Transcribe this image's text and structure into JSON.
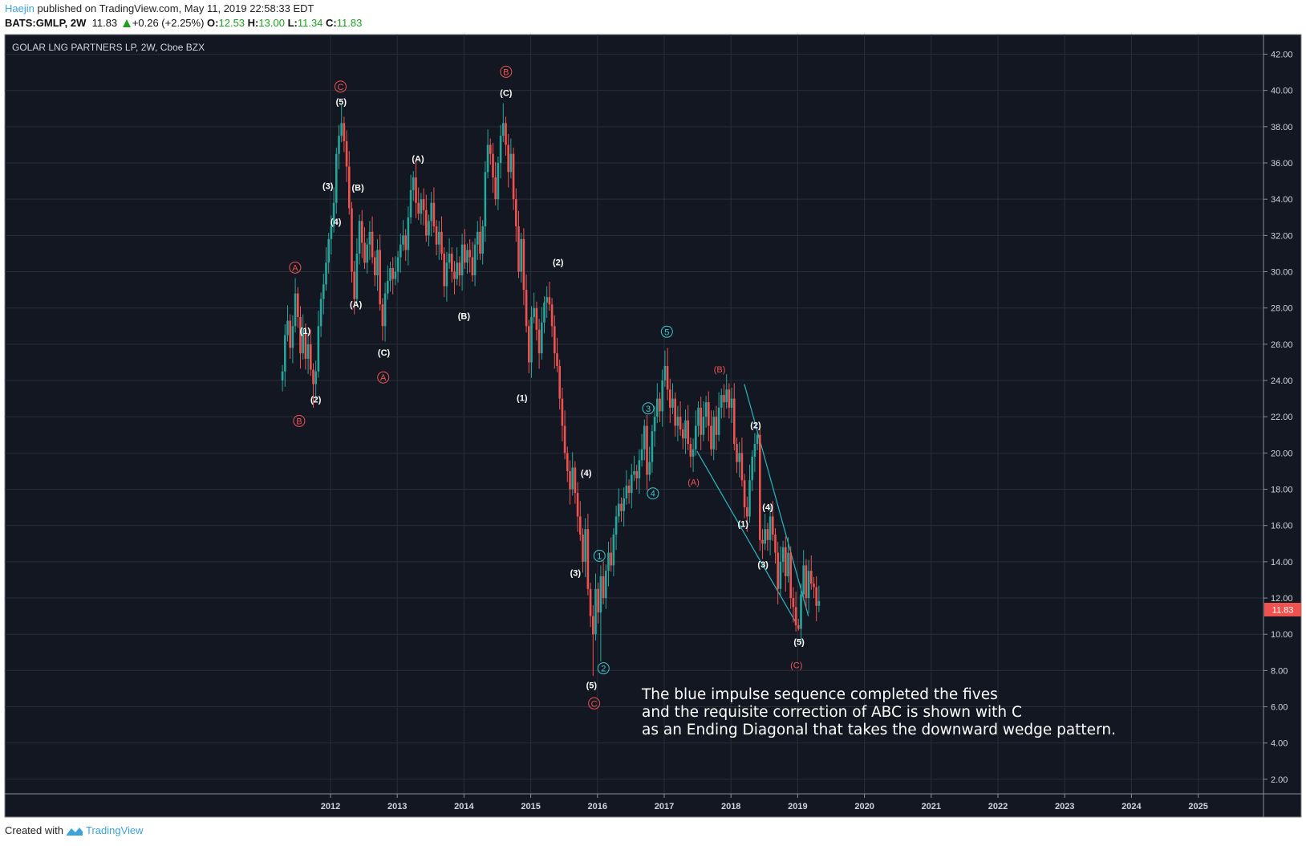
{
  "header": {
    "author": "Haejin",
    "published": "published on TradingView.com, May 11, 2019 22:58:33 EDT",
    "symbol": "BATS:GMLP, 2W",
    "last": "11.83",
    "change": "+0.26 (+2.25%)",
    "o_label": "O:",
    "o": "12.53",
    "h_label": "H:",
    "h": "13.00",
    "l_label": "L:",
    "l": "11.34",
    "c_label": "C:",
    "c": "11.83"
  },
  "footer": {
    "created_with": "Created with",
    "brand": "TradingView"
  },
  "colors": {
    "background": "#131722",
    "grid": "#2a2e39",
    "up": "#26a69a",
    "down": "#ef5350",
    "wave_white": "#ffffff",
    "wave_red": "#ef5350",
    "wave_teal": "#3cc8d0",
    "trendline": "#26b8c0",
    "header_green": "#1aa21a",
    "author_blue": "#3ba4dc"
  },
  "annotation": {
    "lines": [
      "The blue impulse sequence completed the fives",
      "and the requisite correction of ABC is shown with C",
      "as an Ending Diagonal that takes the downward wedge pattern."
    ]
  },
  "chart_data": {
    "type": "candlestick",
    "title": "GOLAR LNG PARTNERS LP, 2W, Cboe BZX",
    "interval": "2W",
    "last_price_label": "11.83",
    "ylim": [
      0.5,
      43.5
    ],
    "xlim": [
      2007.3,
      2026.0
    ],
    "y_ticks": [
      "2.00",
      "4.00",
      "6.00",
      "8.00",
      "10.00",
      "12.00",
      "14.00",
      "16.00",
      "18.00",
      "20.00",
      "22.00",
      "24.00",
      "26.00",
      "28.00",
      "30.00",
      "32.00",
      "34.00",
      "36.00",
      "38.00",
      "40.00",
      "42.00"
    ],
    "x_ticks": [
      "2012",
      "2013",
      "2014",
      "2015",
      "2016",
      "2017",
      "2018",
      "2019",
      "2020",
      "2021",
      "2022",
      "2023",
      "2024",
      "2025"
    ],
    "grid": true,
    "first_candle_year": 2011.28,
    "first_open": 24.0,
    "closes": [
      24.5,
      26.5,
      27.3,
      25.8,
      27.0,
      28.8,
      27.5,
      25.5,
      26.8,
      25.2,
      26.0,
      24.6,
      23.8,
      24.5,
      27.0,
      28.5,
      29.3,
      30.5,
      31.8,
      32.5,
      33.8,
      36.5,
      37.5,
      38.2,
      37.2,
      35.8,
      33.5,
      30.0,
      28.5,
      31.0,
      32.8,
      31.6,
      30.5,
      31.5,
      32.2,
      30.8,
      29.8,
      31.2,
      28.2,
      27.0,
      28.8,
      29.5,
      30.2,
      29.6,
      30.0,
      30.8,
      31.5,
      32.0,
      31.2,
      33.0,
      34.5,
      35.2,
      33.8,
      33.2,
      34.0,
      33.4,
      32.0,
      32.8,
      33.8,
      32.5,
      31.5,
      32.2,
      31.0,
      29.2,
      30.5,
      31.0,
      30.0,
      29.6,
      30.5,
      29.8,
      31.5,
      30.5,
      31.2,
      30.8,
      29.8,
      31.5,
      32.2,
      31.0,
      32.5,
      35.5,
      37.0,
      36.5,
      35.2,
      34.0,
      36.0,
      37.5,
      38.2,
      37.0,
      35.5,
      36.5,
      34.0,
      32.5,
      30.0,
      31.8,
      29.0,
      27.0,
      25.0,
      27.5,
      28.0,
      26.8,
      25.5,
      27.2,
      28.3,
      28.6,
      28.2,
      27.0,
      25.5,
      24.8,
      23.0,
      21.5,
      20.0,
      19.0,
      18.0,
      19.2,
      17.8,
      16.5,
      15.5,
      14.0,
      15.8,
      12.5,
      11.0,
      10.0,
      12.5,
      11.2,
      13.2,
      12.0,
      13.5,
      14.5,
      13.8,
      15.5,
      16.5,
      17.2,
      16.8,
      17.5,
      18.2,
      17.8,
      18.8,
      19.0,
      18.6,
      19.6,
      20.2,
      21.5,
      18.8,
      19.5,
      21.2,
      22.0,
      23.0,
      22.3,
      24.0,
      24.8,
      23.5,
      22.5,
      23.0,
      21.5,
      22.0,
      21.3,
      20.8,
      21.8,
      20.5,
      19.8,
      20.2,
      21.5,
      22.5,
      21.0,
      22.0,
      22.8,
      21.5,
      20.2,
      22.0,
      21.0,
      22.5,
      23.2,
      22.8,
      23.5,
      22.5,
      23.0,
      20.5,
      19.5,
      20.0,
      18.5,
      17.0,
      16.5,
      18.5,
      19.8,
      20.5,
      21.0,
      15.2,
      15.0,
      15.8,
      15.2,
      16.5,
      15.5,
      14.5,
      12.5,
      14.0,
      14.8,
      13.2,
      14.5,
      12.0,
      11.5,
      10.5,
      10.3,
      12.2,
      13.8,
      12.0,
      13.5,
      12.8,
      12.6,
      11.57,
      11.83
    ],
    "extreme_wicks": [
      {
        "index": 12,
        "low": 22.5
      },
      {
        "index": 23,
        "high": 39.2
      },
      {
        "index": 39,
        "low": 26.2
      },
      {
        "index": 52,
        "high": 36.2
      },
      {
        "index": 86,
        "high": 39.3
      },
      {
        "index": 121,
        "low": 7.7
      },
      {
        "index": 124,
        "low": 8.5
      },
      {
        "index": 150,
        "high": 25.8
      },
      {
        "index": 185,
        "high": 21.2
      },
      {
        "index": 201,
        "low": 10.2
      }
    ],
    "trendlines": [
      {
        "from": [
          2017.49,
          20.1
        ],
        "to": [
          2018.98,
          10.6
        ]
      },
      {
        "from": [
          2018.2,
          23.8
        ],
        "to": [
          2019.16,
          11.0
        ]
      }
    ],
    "wave_labels": [
      {
        "text": "A",
        "style": "red-circle",
        "year": 2011.47,
        "price": 30.23
      },
      {
        "text": "(1)",
        "style": "white",
        "year": 2011.62,
        "price": 26.74
      },
      {
        "text": "(2)",
        "style": "white",
        "year": 2011.78,
        "price": 22.97
      },
      {
        "text": "B",
        "style": "red-circle",
        "year": 2011.53,
        "price": 21.77
      },
      {
        "text": "(3)",
        "style": "white",
        "year": 2011.96,
        "price": 34.74
      },
      {
        "text": "(4)",
        "style": "white",
        "year": 2012.08,
        "price": 32.76
      },
      {
        "text": "(5)",
        "style": "white",
        "year": 2012.16,
        "price": 39.38
      },
      {
        "text": "C",
        "style": "red-circle",
        "year": 2012.15,
        "price": 40.21
      },
      {
        "text": "(B)",
        "style": "white",
        "year": 2012.41,
        "price": 34.64
      },
      {
        "text": "(A)",
        "style": "white",
        "year": 2012.38,
        "price": 28.2
      },
      {
        "text": "(C)",
        "style": "white",
        "year": 2012.8,
        "price": 25.54
      },
      {
        "text": "A",
        "style": "red-circle",
        "year": 2012.79,
        "price": 24.17
      },
      {
        "text": "(A)",
        "style": "white",
        "year": 2013.31,
        "price": 36.25
      },
      {
        "text": "(B)",
        "style": "white",
        "year": 2014.0,
        "price": 27.56
      },
      {
        "text": "B",
        "style": "red-circle",
        "year": 2014.63,
        "price": 41.03
      },
      {
        "text": "(C)",
        "style": "white",
        "year": 2014.63,
        "price": 39.88
      },
      {
        "text": "(1)",
        "style": "white",
        "year": 2014.87,
        "price": 23.06
      },
      {
        "text": "(2)",
        "style": "white",
        "year": 2015.41,
        "price": 30.54
      },
      {
        "text": "(4)",
        "style": "white",
        "year": 2015.83,
        "price": 18.9
      },
      {
        "text": "(3)",
        "style": "white",
        "year": 2015.67,
        "price": 13.4
      },
      {
        "text": "(5)",
        "style": "white",
        "year": 2015.91,
        "price": 7.2
      },
      {
        "text": "C",
        "style": "red-circle",
        "year": 2015.95,
        "price": 6.19
      },
      {
        "text": "1",
        "style": "teal-circle",
        "year": 2016.03,
        "price": 14.33
      },
      {
        "text": "2",
        "style": "teal-circle",
        "year": 2016.09,
        "price": 8.12
      },
      {
        "text": "3",
        "style": "teal-circle",
        "year": 2016.76,
        "price": 22.46
      },
      {
        "text": "4",
        "style": "teal-circle",
        "year": 2016.83,
        "price": 17.77
      },
      {
        "text": "5",
        "style": "teal-circle",
        "year": 2017.04,
        "price": 26.69
      },
      {
        "text": "(A)",
        "style": "red",
        "year": 2017.44,
        "price": 18.4
      },
      {
        "text": "(B)",
        "style": "red",
        "year": 2017.83,
        "price": 24.62
      },
      {
        "text": "(2)",
        "style": "white",
        "year": 2018.37,
        "price": 21.54
      },
      {
        "text": "(1)",
        "style": "white",
        "year": 2018.18,
        "price": 16.1
      },
      {
        "text": "(4)",
        "style": "white",
        "year": 2018.55,
        "price": 17.03
      },
      {
        "text": "(3)",
        "style": "white",
        "year": 2018.48,
        "price": 13.86
      },
      {
        "text": "(5)",
        "style": "white",
        "year": 2019.02,
        "price": 9.59
      },
      {
        "text": "(C)",
        "style": "red",
        "year": 2018.98,
        "price": 8.3
      }
    ]
  }
}
